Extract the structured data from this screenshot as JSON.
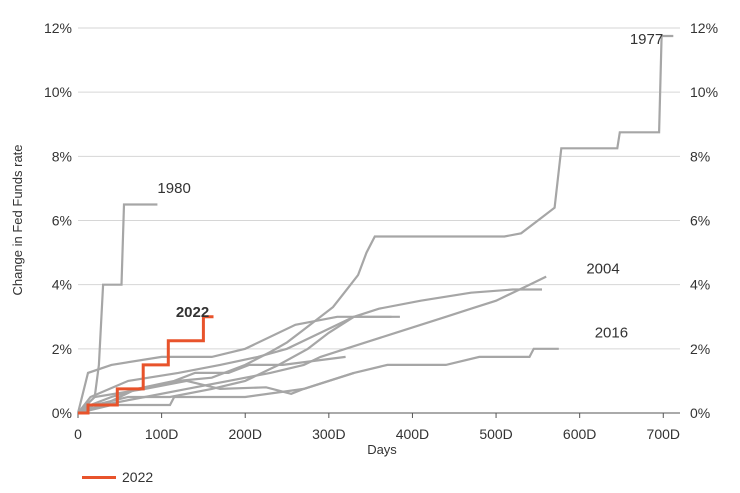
{
  "chart_data": {
    "type": "line",
    "xlabel": "Days",
    "ylabel": "Change in Fed Funds rate",
    "xlim": [
      0,
      720
    ],
    "ylim": [
      0,
      12
    ],
    "x_ticks": [
      "0",
      "100D",
      "200D",
      "300D",
      "400D",
      "500D",
      "600D",
      "700D"
    ],
    "y_ticks": [
      "0%",
      "2%",
      "4%",
      "6%",
      "8%",
      "10%",
      "12%"
    ],
    "grid": "horizontal",
    "legend": {
      "position": "bottom-left",
      "entries": [
        "2022"
      ]
    },
    "colors": {
      "highlight": "#e8532b",
      "history": "#a6a6a6",
      "grid": "#d6d6d6"
    },
    "series": [
      {
        "name": "1977",
        "color": "#a6a6a6",
        "points": [
          [
            0,
            0
          ],
          [
            10,
            0.2
          ],
          [
            40,
            0.5
          ],
          [
            80,
            0.8
          ],
          [
            120,
            1.0
          ],
          [
            160,
            1.1
          ],
          [
            200,
            1.5
          ],
          [
            230,
            1.9
          ],
          [
            250,
            2.2
          ],
          [
            270,
            2.6
          ],
          [
            290,
            3.0
          ],
          [
            305,
            3.3
          ],
          [
            320,
            3.8
          ],
          [
            335,
            4.3
          ],
          [
            345,
            5.0
          ],
          [
            355,
            5.5
          ],
          [
            380,
            5.5
          ],
          [
            420,
            5.5
          ],
          [
            460,
            5.5
          ],
          [
            510,
            5.5
          ],
          [
            530,
            5.6
          ],
          [
            550,
            6.0
          ],
          [
            570,
            6.4
          ],
          [
            578,
            8.25
          ],
          [
            605,
            8.25
          ],
          [
            645,
            8.25
          ],
          [
            648,
            8.75
          ],
          [
            680,
            8.75
          ],
          [
            695,
            8.75
          ],
          [
            698,
            11.75
          ],
          [
            712,
            11.75
          ]
        ]
      },
      {
        "name": "1980",
        "color": "#a6a6a6",
        "points": [
          [
            0,
            0
          ],
          [
            20,
            0.5
          ],
          [
            25,
            1.5
          ],
          [
            30,
            4.0
          ],
          [
            52,
            4.0
          ],
          [
            55,
            6.5
          ],
          [
            95,
            6.5
          ]
        ]
      },
      {
        "name": "2004",
        "color": "#a6a6a6",
        "points": [
          [
            0,
            0
          ],
          [
            30,
            0.25
          ],
          [
            80,
            0.5
          ],
          [
            130,
            0.75
          ],
          [
            180,
            1.0
          ],
          [
            230,
            1.25
          ],
          [
            270,
            1.5
          ],
          [
            290,
            1.75
          ],
          [
            320,
            2.0
          ],
          [
            350,
            2.25
          ],
          [
            380,
            2.5
          ],
          [
            410,
            2.75
          ],
          [
            440,
            3.0
          ],
          [
            470,
            3.25
          ],
          [
            500,
            3.5
          ],
          [
            520,
            3.75
          ],
          [
            540,
            4.0
          ],
          [
            560,
            4.25
          ]
        ]
      },
      {
        "name": "2016",
        "color": "#a6a6a6",
        "points": [
          [
            0,
            0
          ],
          [
            40,
            0.25
          ],
          [
            110,
            0.25
          ],
          [
            115,
            0.5
          ],
          [
            200,
            0.5
          ],
          [
            270,
            0.75
          ],
          [
            300,
            1.0
          ],
          [
            330,
            1.25
          ],
          [
            370,
            1.5
          ],
          [
            440,
            1.5
          ],
          [
            480,
            1.75
          ],
          [
            540,
            1.75
          ],
          [
            545,
            2.0
          ],
          [
            575,
            2.0
          ]
        ]
      },
      {
        "name": "",
        "color": "#a6a6a6",
        "points": [
          [
            0,
            0
          ],
          [
            15,
            0.5
          ],
          [
            60,
            1.0
          ],
          [
            120,
            1.25
          ],
          [
            170,
            1.5
          ],
          [
            215,
            1.75
          ],
          [
            250,
            2.0
          ],
          [
            290,
            2.5
          ],
          [
            330,
            3.0
          ],
          [
            360,
            3.25
          ],
          [
            410,
            3.5
          ],
          [
            470,
            3.75
          ],
          [
            520,
            3.85
          ],
          [
            555,
            3.85
          ]
        ]
      },
      {
        "name": "",
        "color": "#a6a6a6",
        "points": [
          [
            0,
            0
          ],
          [
            20,
            0.25
          ],
          [
            60,
            0.5
          ],
          [
            110,
            0.5
          ],
          [
            160,
            0.75
          ],
          [
            200,
            1.0
          ],
          [
            240,
            1.5
          ],
          [
            275,
            2.0
          ],
          [
            300,
            2.5
          ],
          [
            330,
            3.0
          ],
          [
            375,
            3.0
          ]
        ]
      },
      {
        "name": "",
        "color": "#a6a6a6",
        "points": [
          [
            0,
            0
          ],
          [
            12,
            1.25
          ],
          [
            40,
            1.5
          ],
          [
            100,
            1.75
          ],
          [
            160,
            1.75
          ],
          [
            200,
            2.0
          ],
          [
            260,
            2.75
          ],
          [
            310,
            3.0
          ],
          [
            350,
            3.0
          ],
          [
            385,
            3.0
          ]
        ]
      },
      {
        "name": "",
        "color": "#a6a6a6",
        "points": [
          [
            0,
            0
          ],
          [
            30,
            0.25
          ],
          [
            70,
            0.75
          ],
          [
            115,
            1.0
          ],
          [
            140,
            1.25
          ],
          [
            180,
            1.25
          ],
          [
            205,
            1.5
          ],
          [
            245,
            1.5
          ],
          [
            320,
            1.75
          ]
        ]
      },
      {
        "name": "",
        "color": "#a6a6a6",
        "points": [
          [
            0,
            0
          ],
          [
            20,
            0.5
          ],
          [
            80,
            0.75
          ],
          [
            130,
            1.0
          ],
          [
            170,
            0.75
          ],
          [
            225,
            0.8
          ],
          [
            255,
            0.6
          ],
          [
            270,
            0.75
          ],
          [
            300,
            1.0
          ],
          [
            330,
            1.25
          ]
        ]
      },
      {
        "name": "2022",
        "color": "#e8532b",
        "highlight": true,
        "points": [
          [
            0,
            0
          ],
          [
            12,
            0
          ],
          [
            12,
            0.25
          ],
          [
            47,
            0.25
          ],
          [
            47,
            0.75
          ],
          [
            78,
            0.75
          ],
          [
            78,
            1.5
          ],
          [
            108,
            1.5
          ],
          [
            108,
            2.25
          ],
          [
            150,
            2.25
          ],
          [
            150,
            3.0
          ],
          [
            162,
            3.0
          ]
        ]
      }
    ],
    "annotations": [
      {
        "text": "1977",
        "x": 660,
        "y": 11.5
      },
      {
        "text": "1980",
        "x": 95,
        "y": 6.85
      },
      {
        "text": "2022",
        "x": 117,
        "y": 3.0
      },
      {
        "text": "2004",
        "x": 608,
        "y": 4.35
      },
      {
        "text": "2016",
        "x": 618,
        "y": 2.35
      }
    ]
  }
}
